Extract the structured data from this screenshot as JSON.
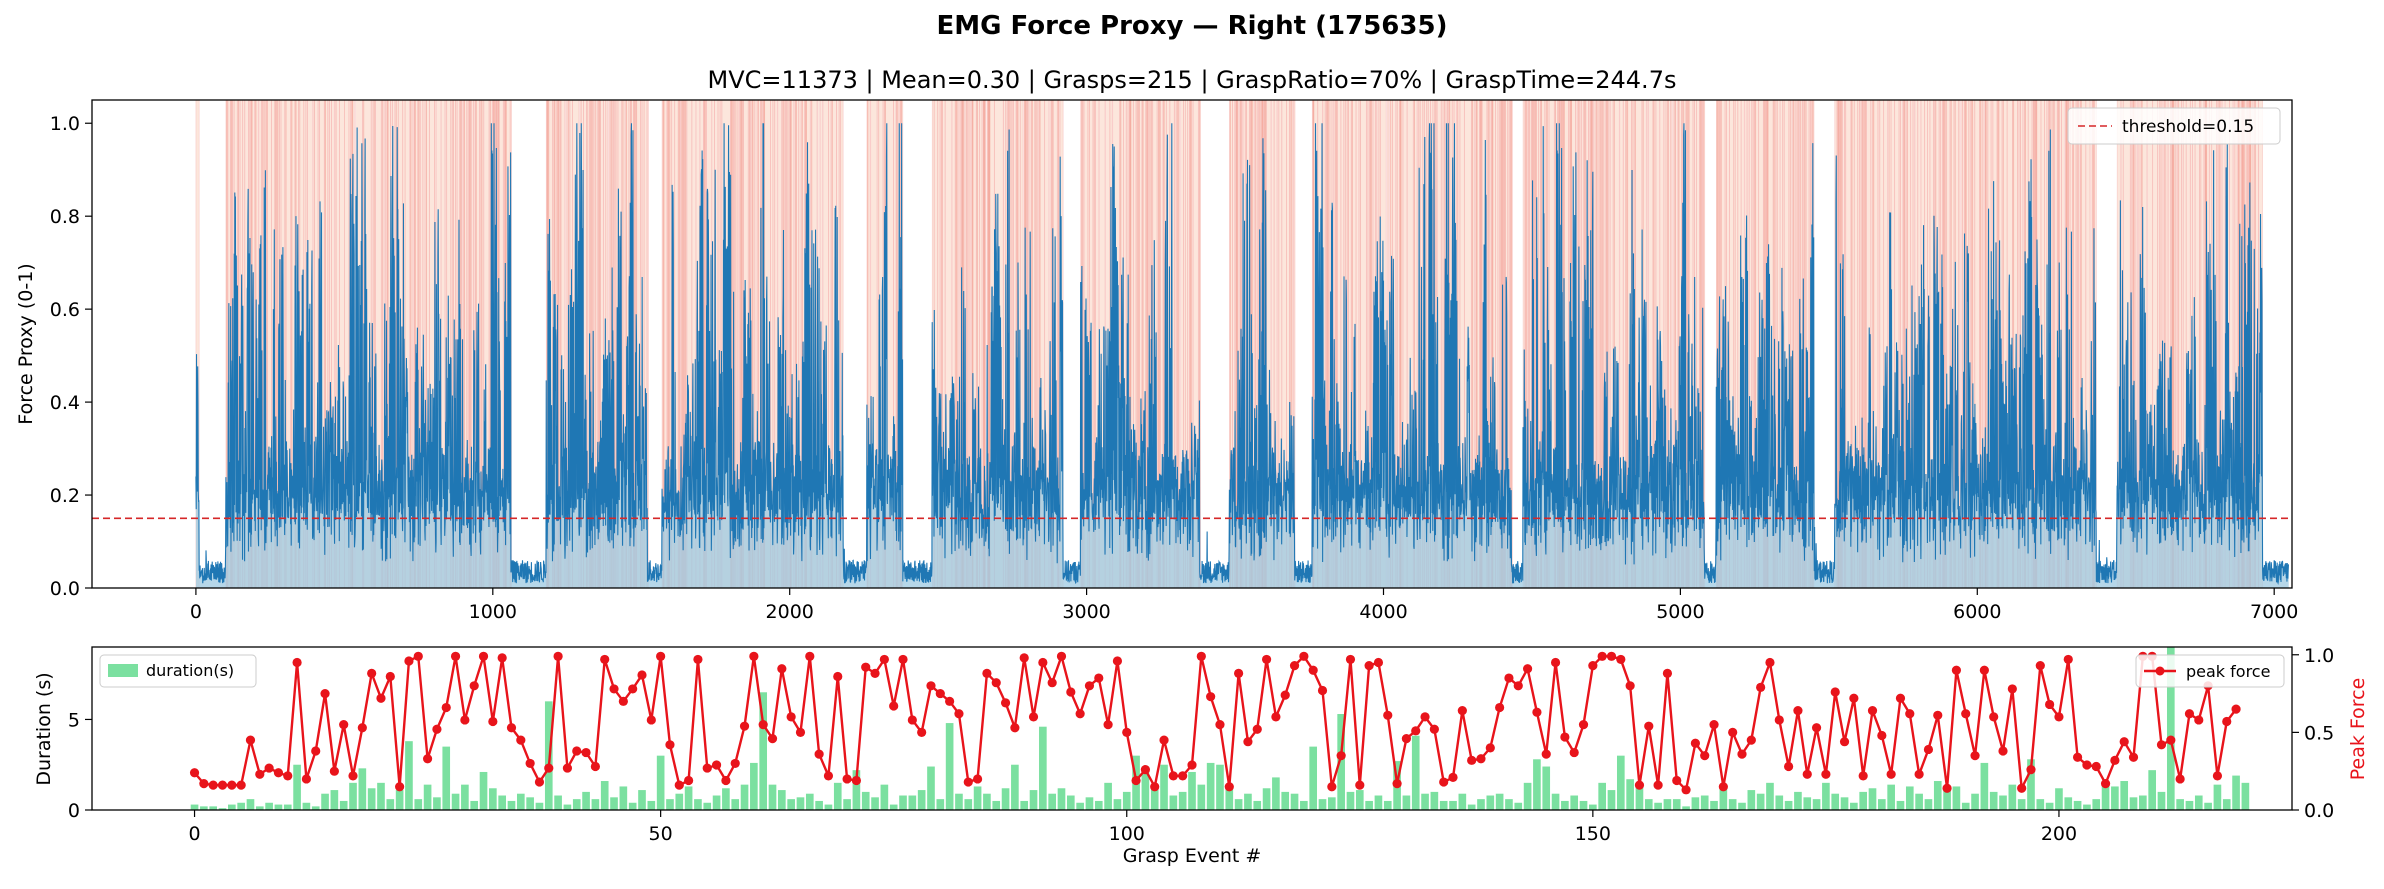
{
  "figure": {
    "suptitle": "EMG Force Proxy — Right (175635)"
  },
  "chart_data": [
    {
      "type": "area",
      "title": "MVC=11373 | Mean=0.30 | Grasps=215 | GraspRatio=70% | GraspTime=244.7s",
      "xlabel": "",
      "ylabel": "Force Proxy (0-1)",
      "xlim": [
        -350,
        7060
      ],
      "ylim": [
        0,
        1.05
      ],
      "xticks": [
        0,
        1000,
        2000,
        3000,
        4000,
        5000,
        6000,
        7000
      ],
      "yticks": [
        0.0,
        0.2,
        0.4,
        0.6,
        0.8,
        1.0
      ],
      "grid": false,
      "legend_position": "top-right",
      "series": [
        {
          "name": "",
          "color": "#1f77b4",
          "fill": "#9ecae1",
          "note": "EMG force proxy trace, ~7050 samples, values 0-1, bursts during grasp events"
        }
      ],
      "threshold": {
        "label": "threshold=0.15",
        "value": 0.15,
        "color": "#d62728"
      },
      "grasp_shading_color": "#f4a582",
      "active_segments": [
        [
          0,
          10
        ],
        [
          100,
          290
        ],
        [
          280,
          1060
        ],
        [
          1180,
          1520
        ],
        [
          1570,
          2180
        ],
        [
          2260,
          2380
        ],
        [
          2480,
          2920
        ],
        [
          2980,
          3380
        ],
        [
          3480,
          3700
        ],
        [
          3760,
          4430
        ],
        [
          4470,
          5080
        ],
        [
          5120,
          5450
        ],
        [
          5520,
          6400
        ],
        [
          6470,
          6960
        ]
      ],
      "quiet_segments": [
        [
          10,
          100
        ],
        [
          1060,
          1180
        ],
        [
          1520,
          1570
        ],
        [
          2180,
          2260
        ],
        [
          2380,
          2480
        ],
        [
          2920,
          2980
        ],
        [
          3380,
          3480
        ],
        [
          3700,
          3760
        ],
        [
          4430,
          4470
        ],
        [
          5080,
          5120
        ],
        [
          5450,
          5520
        ],
        [
          6400,
          6470
        ],
        [
          6960,
          7050
        ]
      ]
    },
    {
      "type": "bar",
      "title": "",
      "xlabel": "Grasp Event #",
      "ylabel": "Duration (s)",
      "y2label": "Peak Force",
      "xlim": [
        -11,
        225
      ],
      "ylim": [
        0,
        9
      ],
      "y2lim": [
        0,
        1.05
      ],
      "xticks": [
        0,
        50,
        100,
        150,
        200
      ],
      "yticks": [
        0,
        5
      ],
      "y2ticks": [
        0.0,
        0.5,
        1.0
      ],
      "grid": false,
      "legend_left": "duration(s)",
      "legend_right": "peak force",
      "bar_color": "#7be0a0",
      "line_color": "#e8141b",
      "series": [
        {
          "name": "duration(s)",
          "axis": "left",
          "values": [
            0.3,
            0.2,
            0.2,
            0.1,
            0.3,
            0.4,
            0.6,
            0.2,
            0.4,
            0.3,
            0.3,
            2.5,
            0.4,
            0.2,
            0.9,
            1.1,
            0.5,
            1.5,
            2.3,
            1.2,
            1.5,
            0.6,
            1.1,
            3.8,
            0.6,
            1.4,
            0.7,
            3.5,
            0.9,
            1.4,
            0.5,
            2.1,
            1.2,
            0.8,
            0.5,
            0.9,
            0.7,
            0.4,
            6.0,
            0.8,
            0.3,
            0.6,
            1.0,
            0.6,
            1.6,
            0.7,
            1.3,
            0.4,
            1.1,
            0.5,
            3.0,
            0.6,
            0.9,
            1.3,
            0.6,
            0.4,
            0.8,
            1.2,
            0.6,
            1.4,
            2.6,
            6.5,
            1.4,
            1.1,
            0.6,
            0.7,
            0.9,
            0.5,
            0.3,
            1.5,
            0.6,
            2.2,
            1.0,
            0.7,
            1.4,
            0.3,
            0.8,
            0.8,
            1.1,
            2.4,
            0.6,
            4.8,
            0.9,
            0.6,
            1.3,
            0.9,
            0.5,
            1.2,
            2.5,
            0.5,
            1.1,
            4.6,
            0.9,
            1.2,
            0.8,
            0.4,
            0.7,
            0.5,
            1.5,
            0.6,
            1.0,
            3.0,
            2.4,
            1.3,
            2.5,
            0.8,
            1.0,
            2.1,
            1.4,
            2.6,
            2.5,
            1.3,
            0.6,
            0.9,
            0.5,
            1.2,
            1.8,
            1.0,
            0.9,
            0.5,
            3.5,
            0.6,
            0.7,
            5.3,
            1.0,
            1.1,
            0.5,
            0.8,
            0.5,
            2.7,
            0.8,
            4.1,
            0.9,
            1.0,
            0.5,
            0.5,
            0.9,
            0.3,
            0.6,
            0.8,
            0.9,
            0.6,
            0.4,
            1.5,
            2.8,
            2.4,
            0.9,
            0.5,
            0.8,
            0.5,
            0.3,
            1.5,
            1.1,
            3.0,
            1.7,
            1.3,
            0.6,
            0.4,
            0.6,
            0.6,
            0.2,
            0.7,
            0.8,
            0.5,
            1.2,
            0.6,
            0.4,
            1.1,
            0.9,
            1.5,
            0.8,
            0.5,
            1.0,
            0.7,
            0.6,
            1.5,
            0.9,
            0.7,
            0.4,
            1.0,
            1.2,
            0.6,
            1.4,
            0.5,
            1.3,
            0.9,
            0.6,
            1.6,
            1.2,
            1.3,
            0.4,
            0.9,
            2.6,
            1.0,
            0.8,
            1.4,
            0.6,
            2.8,
            0.6,
            0.4,
            1.2,
            0.7,
            0.5,
            0.3,
            0.6,
            1.5,
            1.3,
            1.6,
            0.7,
            0.8,
            2.2,
            1.0,
            9.0,
            0.6,
            0.5,
            0.8,
            0.4,
            1.4,
            0.6,
            1.9,
            1.5
          ]
        },
        {
          "name": "peak force",
          "axis": "right",
          "values": [
            0.24,
            0.17,
            0.16,
            0.16,
            0.16,
            0.16,
            0.45,
            0.23,
            0.27,
            0.24,
            0.22,
            0.95,
            0.2,
            0.38,
            0.75,
            0.25,
            0.55,
            0.22,
            0.53,
            0.88,
            0.72,
            0.86,
            0.15,
            0.96,
            0.99,
            0.33,
            0.52,
            0.66,
            0.99,
            0.58,
            0.8,
            0.99,
            0.57,
            0.98,
            0.53,
            0.45,
            0.3,
            0.18,
            0.27,
            0.99,
            0.27,
            0.38,
            0.37,
            0.28,
            0.97,
            0.78,
            0.7,
            0.78,
            0.87,
            0.58,
            0.99,
            0.42,
            0.16,
            0.19,
            0.97,
            0.27,
            0.29,
            0.19,
            0.3,
            0.54,
            0.99,
            0.55,
            0.46,
            0.91,
            0.6,
            0.5,
            0.99,
            0.36,
            0.22,
            0.86,
            0.2,
            0.19,
            0.92,
            0.88,
            0.97,
            0.67,
            0.97,
            0.58,
            0.5,
            0.8,
            0.75,
            0.7,
            0.62,
            0.18,
            0.2,
            0.88,
            0.82,
            0.69,
            0.53,
            0.98,
            0.6,
            0.95,
            0.82,
            0.99,
            0.76,
            0.62,
            0.8,
            0.85,
            0.55,
            0.96,
            0.5,
            0.19,
            0.26,
            0.15,
            0.45,
            0.22,
            0.22,
            0.29,
            0.99,
            0.73,
            0.55,
            0.15,
            0.88,
            0.44,
            0.52,
            0.97,
            0.6,
            0.74,
            0.93,
            0.99,
            0.9,
            0.77,
            0.15,
            0.35,
            0.97,
            0.16,
            0.93,
            0.95,
            0.61,
            0.17,
            0.46,
            0.51,
            0.6,
            0.52,
            0.18,
            0.21,
            0.64,
            0.32,
            0.33,
            0.4,
            0.66,
            0.85,
            0.8,
            0.91,
            0.63,
            0.36,
            0.95,
            0.47,
            0.37,
            0.55,
            0.93,
            0.99,
            0.99,
            0.97,
            0.8,
            0.16,
            0.54,
            0.16,
            0.88,
            0.19,
            0.13,
            0.43,
            0.35,
            0.55,
            0.15,
            0.5,
            0.36,
            0.45,
            0.79,
            0.95,
            0.58,
            0.28,
            0.64,
            0.23,
            0.53,
            0.23,
            0.76,
            0.44,
            0.72,
            0.22,
            0.64,
            0.48,
            0.23,
            0.72,
            0.62,
            0.23,
            0.39,
            0.61,
            0.14,
            0.9,
            0.62,
            0.35,
            0.9,
            0.6,
            0.38,
            0.78,
            0.14,
            0.26,
            0.93,
            0.68,
            0.6,
            0.97,
            0.34,
            0.29,
            0.28,
            0.17,
            0.32,
            0.44,
            0.34,
            0.99,
            0.99,
            0.42,
            0.45,
            0.2,
            0.62,
            0.58,
            0.8,
            0.22,
            0.57,
            0.65
          ]
        }
      ]
    }
  ]
}
